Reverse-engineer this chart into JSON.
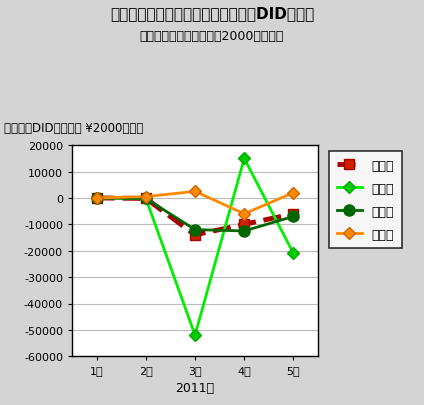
{
  "title": "東日本大震災前後の家計総消費支出DID変化額",
  "subtitle": "（総務省家計調査月報・2000年実質）",
  "ylabel": "例年とのDID支出額差 ¥2000年実質",
  "xlabel": "2011年",
  "months": [
    "1月",
    "2月",
    "3月",
    "4月",
    "5月"
  ],
  "series": [
    {
      "label": "全　国",
      "data": [
        0,
        -200,
        -14000,
        -10000,
        -6000
      ],
      "color": "#aa0000",
      "linestyle": "--",
      "linewidth": 3.5,
      "marker": "s",
      "markersize": 7,
      "markerfacecolor": "#cc2200",
      "markeredgecolor": "#aa0000"
    },
    {
      "label": "東　北",
      "data": [
        0,
        -200,
        -52000,
        15000,
        -21000
      ],
      "color": "#00ee00",
      "linestyle": "-",
      "linewidth": 2,
      "marker": "D",
      "markersize": 6,
      "markerfacecolor": "#00cc00",
      "markeredgecolor": "#00aa00"
    },
    {
      "label": "関　東",
      "data": [
        0,
        -200,
        -12000,
        -12500,
        -7000
      ],
      "color": "#006600",
      "linestyle": "-",
      "linewidth": 2,
      "marker": "o",
      "markersize": 8,
      "markerfacecolor": "#006600",
      "markeredgecolor": "#006600"
    },
    {
      "label": "他地域",
      "data": [
        0,
        500,
        2500,
        -6000,
        2000
      ],
      "color": "#ff8800",
      "linestyle": "-",
      "linewidth": 2,
      "marker": "D",
      "markersize": 6,
      "markerfacecolor": "#ff8800",
      "markeredgecolor": "#cc6600"
    }
  ],
  "ylim": [
    -60000,
    20000
  ],
  "yticks": [
    -60000,
    -50000,
    -40000,
    -30000,
    -20000,
    -10000,
    0,
    10000,
    20000
  ],
  "bg_color": "#d4d4d4",
  "plot_bg_color": "#ffffff",
  "border_color": "#000000",
  "grid_color": "#bbbbbb",
  "title_fontsize": 11,
  "subtitle_fontsize": 9,
  "ylabel_fontsize": 8.5,
  "tick_fontsize": 8,
  "xlabel_fontsize": 9,
  "legend_fontsize": 9
}
